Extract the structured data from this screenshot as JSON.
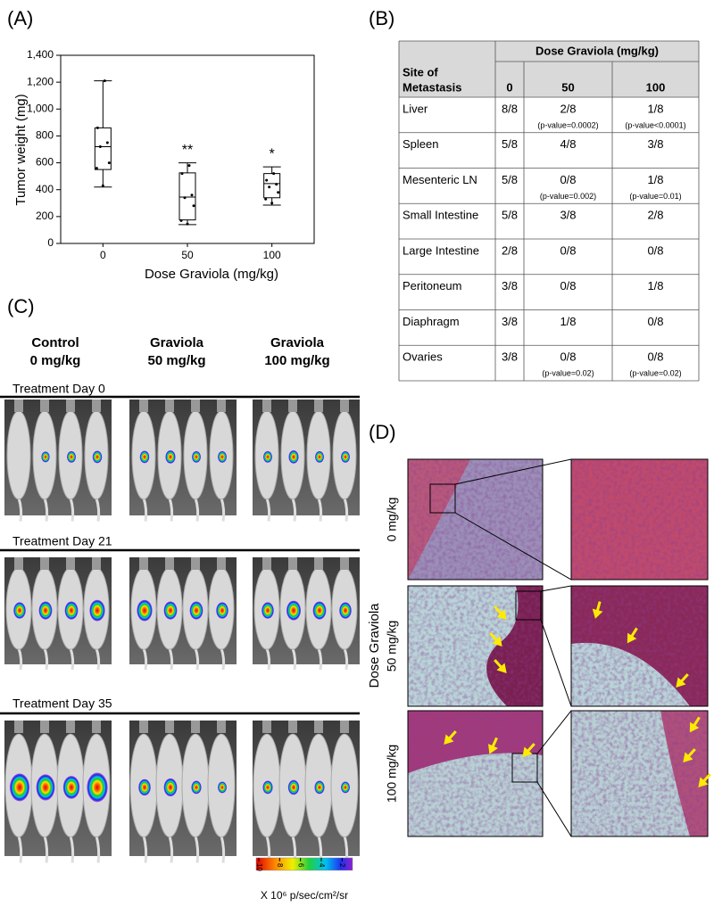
{
  "panel_labels": [
    "(A)",
    "(B)",
    "(C)",
    "(D)"
  ],
  "chart_data": {
    "type": "box",
    "ylabel": "Tumor weight (mg)",
    "xlabel": "Dose Graviola (mg/kg)",
    "categories": [
      "0",
      "50",
      "100"
    ],
    "boxes": [
      {
        "min": 420,
        "q1": 550,
        "median": 720,
        "q3": 860,
        "max": 1210,
        "points": [
          1210,
          860,
          750,
          720,
          600,
          560,
          430
        ]
      },
      {
        "min": 140,
        "q1": 175,
        "median": 345,
        "q3": 525,
        "max": 600,
        "points": [
          580,
          520,
          360,
          340,
          280,
          170,
          145
        ]
      },
      {
        "min": 285,
        "q1": 340,
        "median": 445,
        "q3": 520,
        "max": 570,
        "points": [
          520,
          470,
          440,
          420,
          380,
          330,
          300
        ]
      }
    ],
    "annotations": [
      {
        "category": "50",
        "text": "**"
      },
      {
        "category": "100",
        "text": "*"
      }
    ],
    "color": "#000000",
    "ylim": [
      0,
      1400
    ],
    "yticks": [
      0,
      200,
      400,
      600,
      800,
      {
        "value": 1000,
        "label": "1,000"
      },
      {
        "value": 1200,
        "label": "1,200"
      },
      {
        "value": 1400,
        "label": "1,400"
      }
    ]
  },
  "table": {
    "dose_header": "Dose Graviola  (mg/kg)",
    "site_header": [
      "Site of",
      "Metastasis"
    ],
    "dose_columns": [
      "0",
      "50",
      "100"
    ],
    "rows": [
      {
        "site": "Liver",
        "cells": [
          "8/8",
          {
            "text": "2/8",
            "note": "(p-value=0.0002)"
          },
          {
            "text": "1/8",
            "note": "(p-value<0.0001)"
          }
        ]
      },
      {
        "site": "Spleen",
        "cells": [
          "5/8",
          "4/8",
          "3/8"
        ]
      },
      {
        "site": "Mesenteric LN",
        "cells": [
          "5/8",
          {
            "text": "0/8",
            "note": "(p-value=0.002)"
          },
          {
            "text": "1/8",
            "note": "(p-value=0.01)"
          }
        ]
      },
      {
        "site": "Small Intestine",
        "cells": [
          "5/8",
          "3/8",
          "2/8"
        ]
      },
      {
        "site": "Large Intestine",
        "cells": [
          "2/8",
          "0/8",
          "0/8"
        ]
      },
      {
        "site": "Peritoneum",
        "cells": [
          "3/8",
          "0/8",
          "1/8"
        ]
      },
      {
        "site": "Diaphragm",
        "cells": [
          "3/8",
          "1/8",
          "0/8"
        ]
      },
      {
        "site": "Ovaries",
        "cells": [
          "3/8",
          {
            "text": "0/8",
            "note": "(p-value=0.02)"
          },
          {
            "text": "0/8",
            "note": "(p-value=0.02)"
          }
        ]
      }
    ]
  },
  "imaging": {
    "groups": [
      [
        "Control",
        "0 mg/kg"
      ],
      [
        "Graviola",
        "50 mg/kg"
      ],
      [
        "Graviola",
        "100 mg/kg"
      ]
    ],
    "sections": [
      "Treatment Day 0",
      "Treatment Day 21",
      "Treatment Day  35"
    ],
    "colorbar": {
      "ticks": [
        10,
        8,
        6,
        4,
        2
      ],
      "label": "X 10⁶ p/sec/cm²/sr"
    }
  },
  "histology": {
    "axis_label": "Dose Graviola",
    "rows": [
      "0 mg/kg",
      "50 mg/kg",
      "100 mg/kg"
    ]
  }
}
